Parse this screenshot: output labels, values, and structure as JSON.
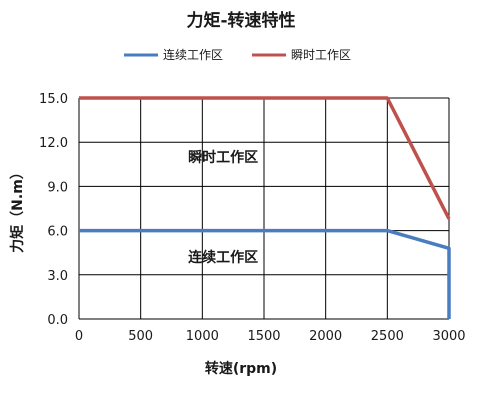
{
  "chart_data": {
    "type": "line",
    "title": "力矩-转速特性",
    "xlabel": "转速(rpm)",
    "ylabel": "力矩（N.m）",
    "xlim": [
      0,
      3000
    ],
    "ylim": [
      0,
      15
    ],
    "x_ticks": [
      "0",
      "500",
      "1000",
      "1500",
      "2000",
      "2500",
      "3000"
    ],
    "y_ticks": [
      "0.0",
      "3.0",
      "6.0",
      "9.0",
      "12.0",
      "15.0"
    ],
    "grid": true,
    "legend_position": "top-center",
    "series": [
      {
        "name": "连续工作区",
        "color": "#4a7dbf",
        "points": [
          [
            0,
            6.0
          ],
          [
            2500,
            6.0
          ],
          [
            3000,
            4.8
          ],
          [
            3000,
            0
          ]
        ]
      },
      {
        "name": "瞬时工作区",
        "color": "#c0504d",
        "points": [
          [
            0,
            15.0
          ],
          [
            2500,
            15.0
          ],
          [
            3000,
            6.8
          ]
        ]
      }
    ],
    "annotations": [
      {
        "text": "瞬时工作区",
        "x": 1250,
        "y": 11.0
      },
      {
        "text": "连续工作区",
        "x": 1250,
        "y": 4.2
      }
    ]
  }
}
